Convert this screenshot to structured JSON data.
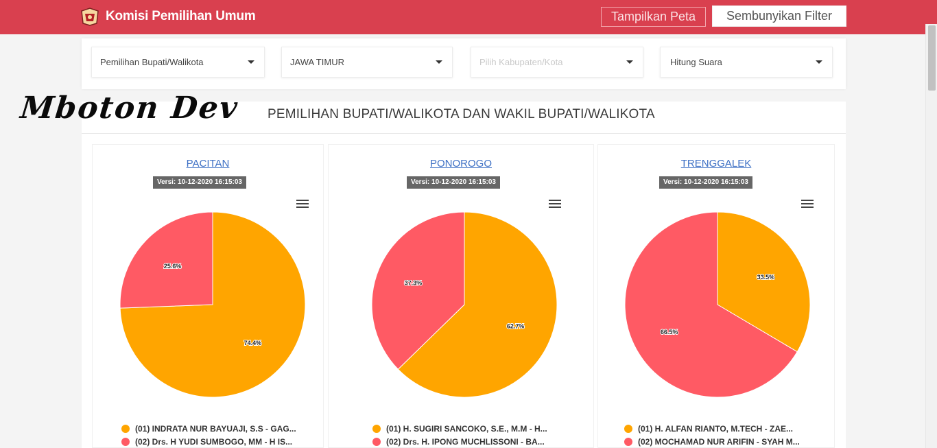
{
  "header": {
    "brand_name": "Komisi Pemilihan Umum",
    "show_map_label": "Tampilkan Peta",
    "hide_filter_label": "Sembunyikan Filter",
    "bar_color": "#d9404f"
  },
  "filters": {
    "election_type": "Pemilihan Bupati/Walikota",
    "province": "JAWA TIMUR",
    "regency_placeholder": "Pilih Kabupaten/Kota",
    "count_mode": "Hitung Suara"
  },
  "watermark": "Mboton Dev",
  "section_title": "PEMILIHAN BUPATI/WALIKOTA DAN WAKIL BUPATI/WALIKOTA",
  "colors": {
    "candidate_01": "#ffa500",
    "candidate_02": "#ff5a64"
  },
  "regions": [
    {
      "name": "PACITAN",
      "version": "Versi: 10-12-2020 16:15:03",
      "chart_data": {
        "type": "pie",
        "slices": [
          {
            "label": "(01) INDRATA NUR BAYUAJI, S.S - GAG...",
            "value": 74.4,
            "display": "74.4%"
          },
          {
            "label": "(02) Drs. H YUDI SUMBOGO, MM - H IS...",
            "value": 25.6,
            "display": "25.6%"
          }
        ]
      }
    },
    {
      "name": "PONOROGO",
      "version": "Versi: 10-12-2020 16:15:03",
      "chart_data": {
        "type": "pie",
        "slices": [
          {
            "label": "(01) H. SUGIRI SANCOKO, S.E., M.M - H...",
            "value": 62.7,
            "display": "62.7%"
          },
          {
            "label": "(02) Drs. H. IPONG MUCHLISSONI - BA...",
            "value": 37.3,
            "display": "37.3%"
          }
        ]
      }
    },
    {
      "name": "TRENGGALEK",
      "version": "Versi: 10-12-2020 16:15:03",
      "chart_data": {
        "type": "pie",
        "slices": [
          {
            "label": "(01) H. ALFAN RIANTO, M.TECH - ZAE...",
            "value": 33.5,
            "display": "33.5%"
          },
          {
            "label": "(02) MOCHAMAD NUR ARIFIN - SYAH M...",
            "value": 66.5,
            "display": "66.5%"
          }
        ]
      }
    }
  ]
}
